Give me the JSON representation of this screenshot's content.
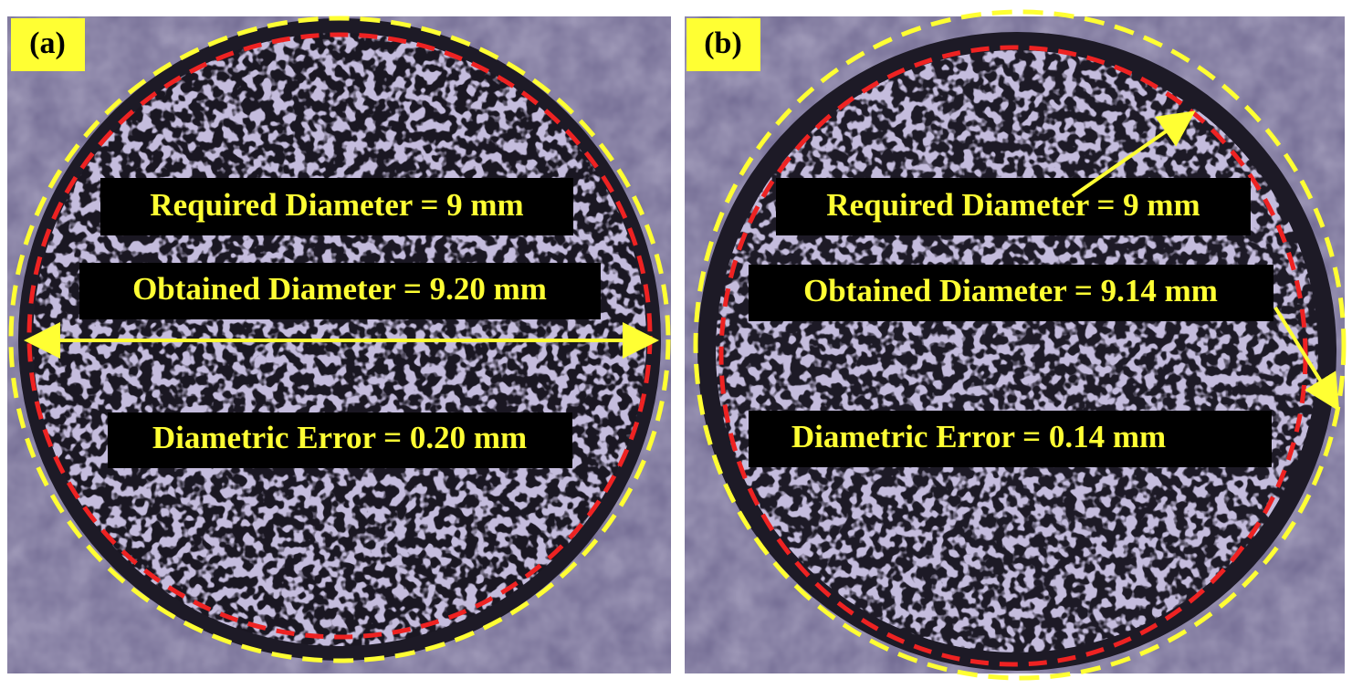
{
  "panels": [
    {
      "label": "(a)",
      "required": "Required Diameter = 9 mm",
      "obtained": "Obtained Diameter = 9.20 mm",
      "error": "Diametric Error = 0.20 mm"
    },
    {
      "label": "(b)",
      "required": "Required Diameter = 9 mm",
      "obtained": "Obtained Diameter = 9.14 mm",
      "error": "Diametric Error = 0.14 mm"
    }
  ]
}
